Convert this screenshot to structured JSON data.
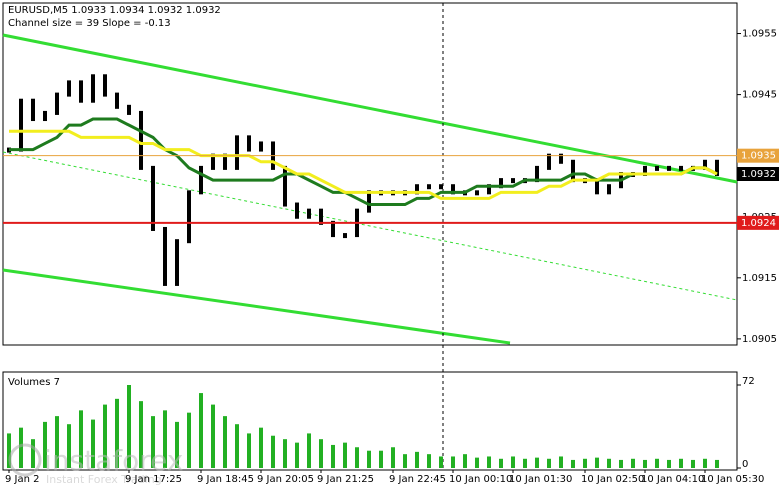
{
  "chart_data": [
    {
      "type": "candlestick",
      "title": "EURUSD,M5  1.0933 1.0934 1.0932 1.0932",
      "subtitle": "Channel size = 39 Slope = -0.13",
      "annotations": [
        "instaforex",
        "Instant Forex Trading"
      ],
      "categories": [
        "9 Jan 2",
        null,
        null,
        null,
        null,
        null,
        null,
        null,
        null,
        null,
        "9 Jan 17:25",
        null,
        null,
        null,
        null,
        null,
        "9 Jan 18:45",
        null,
        null,
        null,
        null,
        "9 Jan 20:05",
        null,
        null,
        null,
        null,
        "9 Jan 21:25",
        null,
        null,
        null,
        null,
        null,
        "9 Jan 22:45",
        null,
        null,
        null,
        null,
        "10 Jan 00:10",
        null,
        null,
        null,
        null,
        "10 Jan 01:30",
        null,
        null,
        null,
        null,
        null,
        "10 Jan 02:50",
        null,
        null,
        null,
        null,
        "10 Jan 04:10",
        null,
        null,
        null,
        null,
        "10 Jan 05:30",
        null
      ],
      "series": [
        {
          "style": "candle",
          "color": "#000000",
          "values": [
            1.0936,
            1.0944,
            1.0941,
            1.0942,
            1.0945,
            1.0947,
            1.0944,
            1.0948,
            1.0945,
            1.0943,
            1.0942,
            1.0933,
            1.0923,
            1.0914,
            1.0921,
            1.0929,
            1.0933,
            1.0935,
            1.0933,
            1.0938,
            1.0936,
            1.0937,
            1.0933,
            1.0927,
            1.0925,
            1.0926,
            1.0924,
            1.0922,
            1.0922,
            1.0926,
            1.0929,
            1.0929,
            1.0929,
            1.0929,
            1.093,
            1.093,
            1.093,
            1.0929,
            1.0929,
            1.0929,
            1.093,
            1.0931,
            1.0931,
            1.0931,
            1.0933,
            1.0935,
            1.0934,
            1.0931,
            1.0931,
            1.0929,
            1.093,
            1.0932,
            1.0932,
            1.0933,
            1.0933,
            1.0933,
            1.0933,
            1.0933,
            1.0934,
            1.0932
          ]
        },
        {
          "style": "line",
          "color": "#1e7b1e",
          "values": [
            1.0936,
            1.0936,
            1.0936,
            1.0937,
            1.0938,
            1.094,
            1.094,
            1.0941,
            1.0941,
            1.0941,
            1.094,
            1.0939,
            1.0938,
            1.0936,
            1.0935,
            1.0933,
            1.0932,
            1.0931,
            1.0931,
            1.0931,
            1.0931,
            1.0931,
            1.0931,
            1.0932,
            1.0932,
            1.0931,
            1.093,
            1.0929,
            1.0929,
            1.0928,
            1.0927,
            1.0927,
            1.0927,
            1.0927,
            1.0928,
            1.0928,
            1.0929,
            1.0929,
            1.0929,
            1.093,
            1.093,
            1.093,
            1.093,
            1.0931,
            1.0931,
            1.0931,
            1.0931,
            1.0932,
            1.0932,
            1.0931,
            1.0931,
            1.0931,
            1.0932,
            1.0932,
            1.0932,
            1.0932,
            1.0932,
            1.0933,
            1.0933,
            1.0932
          ]
        },
        {
          "style": "line",
          "color": "#f2ee1e",
          "values": [
            1.0939,
            1.0939,
            1.0939,
            1.0939,
            1.0939,
            1.0939,
            1.0938,
            1.0938,
            1.0938,
            1.0938,
            1.0938,
            1.0937,
            1.0937,
            1.0936,
            1.0936,
            1.0936,
            1.0935,
            1.0935,
            1.0935,
            1.0935,
            1.0935,
            1.0934,
            1.0934,
            1.0933,
            1.0932,
            1.0932,
            1.0931,
            1.093,
            1.0929,
            1.0929,
            1.0929,
            1.0929,
            1.0929,
            1.0929,
            1.0929,
            1.0929,
            1.0928,
            1.0928,
            1.0928,
            1.0928,
            1.0928,
            1.0929,
            1.0929,
            1.0929,
            1.0929,
            1.093,
            1.093,
            1.0931,
            1.0931,
            1.0931,
            1.0932,
            1.0932,
            1.0932,
            1.0932,
            1.0932,
            1.0932,
            1.0932,
            1.0933,
            1.0933,
            1.0932
          ]
        }
      ],
      "ylim": [
        1.0904,
        1.096
      ],
      "yticks": [
        1.0955,
        1.0945,
        1.0935,
        1.0925,
        1.0915,
        1.0905
      ],
      "levels": [
        {
          "price": 1.0935,
          "color": "#e8a33c",
          "line": true
        },
        {
          "price": 1.0924,
          "color": "#e01b1b",
          "line": true
        },
        {
          "price": 1.0932,
          "color": "#000000",
          "line": false
        }
      ]
    },
    {
      "type": "bar",
      "title": "Volumes 7",
      "color": "#22b022",
      "values": [
        30,
        35,
        25,
        40,
        45,
        38,
        50,
        42,
        55,
        60,
        72,
        58,
        45,
        50,
        40,
        48,
        65,
        55,
        45,
        38,
        30,
        35,
        28,
        25,
        22,
        30,
        25,
        20,
        22,
        18,
        15,
        15,
        18,
        12,
        14,
        12,
        10,
        10,
        12,
        9,
        10,
        8,
        10,
        8,
        9,
        8,
        10,
        7,
        8,
        9,
        8,
        7,
        8,
        7,
        8,
        7,
        8,
        7,
        8,
        7
      ],
      "ylim": [
        0,
        72
      ],
      "yticks": [
        0,
        72
      ]
    }
  ]
}
